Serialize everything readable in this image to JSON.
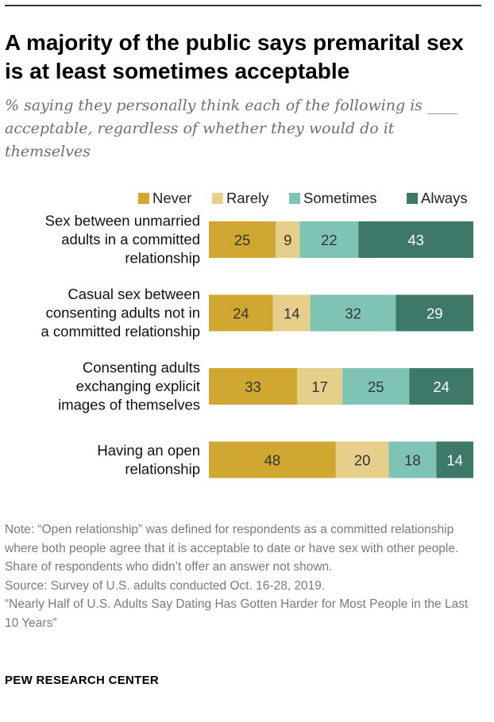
{
  "title": "A majority of the public says premarital sex is at least sometimes acceptable",
  "subtitle": "% saying they personally think each of the following is ____ acceptable, regardless of whether they would do it themselves",
  "colors": {
    "Never": "#d0a730",
    "Rarely": "#e6cf8b",
    "Sometimes": "#7ec3b4",
    "Always": "#3e7868",
    "text_dark": "#333333",
    "text_light": "#ffffff"
  },
  "chart_data": {
    "type": "bar",
    "orientation": "horizontal",
    "stacked": true,
    "legend_position": "top-right",
    "grid": false,
    "categories": [
      [
        "Sex between unmarried",
        "adults in a committed",
        "relationship"
      ],
      [
        "Casual sex between",
        "consenting adults not in",
        "a committed relationship"
      ],
      [
        "Consenting adults",
        "exchanging explicit",
        "images of themselves"
      ],
      [
        "Having an open",
        "relationship"
      ]
    ],
    "series": [
      {
        "name": "Never",
        "values": [
          25,
          24,
          33,
          48
        ]
      },
      {
        "name": "Rarely",
        "values": [
          9,
          14,
          17,
          20
        ]
      },
      {
        "name": "Sometimes",
        "values": [
          22,
          32,
          25,
          18
        ]
      },
      {
        "name": "Always",
        "values": [
          43,
          29,
          24,
          14
        ]
      }
    ]
  },
  "footer": {
    "note": "Note: “Open relationship” was defined for respondents as a committed relationship where both people agree that it is acceptable to date or have sex with other people. Share of respondents who didn’t offer an answer not shown.",
    "source": "Source: Survey of U.S. adults conducted Oct. 16-28, 2019.",
    "report": "“Nearly Half of U.S. Adults Say Dating Has Gotten Harder for Most People in the Last 10 Years”",
    "brand": "PEW RESEARCH CENTER"
  }
}
